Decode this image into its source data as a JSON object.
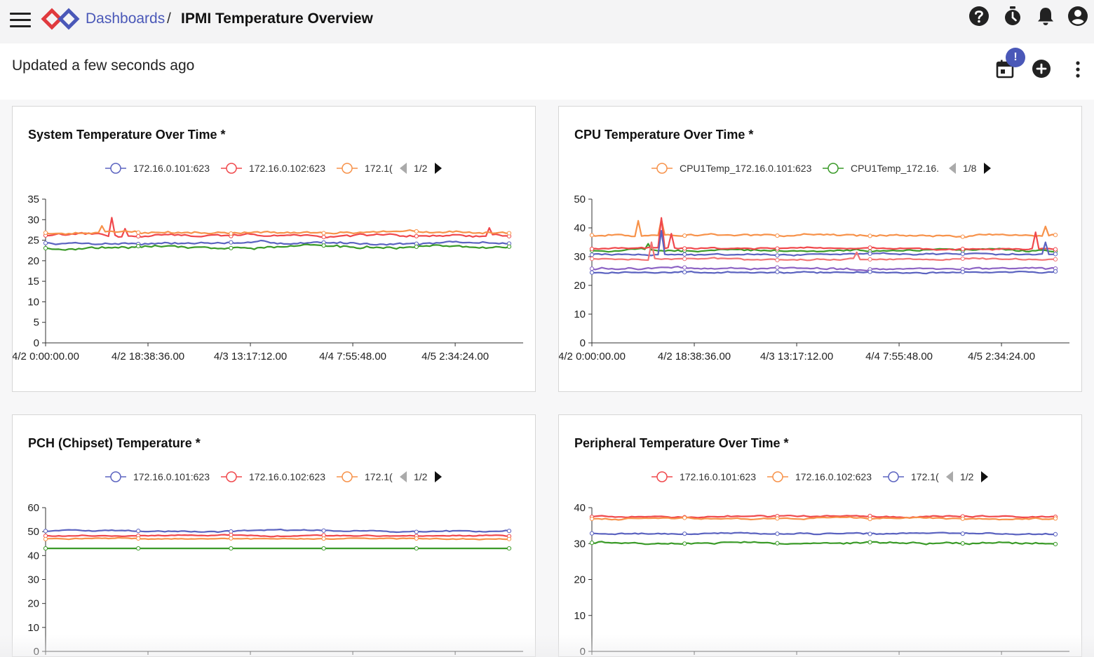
{
  "header": {
    "breadcrumb_link": "Dashboards",
    "breadcrumb_separator": "/",
    "title": "IPMI Temperature Overview",
    "icons": [
      "menu-icon",
      "app-logo",
      "help-icon",
      "timer-icon",
      "notification-bell-icon",
      "account-icon"
    ]
  },
  "toolbar": {
    "updated_text": "Updated a few seconds ago",
    "badge": "!",
    "icons": [
      "calendar-icon",
      "add-icon",
      "more-vert-icon"
    ]
  },
  "colors": {
    "accent": "#4a58b8",
    "series_blue": "#5b63c0",
    "series_red": "#f0484c",
    "series_orange": "#f7924a",
    "series_green": "#3a9a28",
    "series_purple": "#8c63c4",
    "series_lightred": "#f27474"
  },
  "chart_data": [
    {
      "type": "line",
      "title": "System Temperature Over Time *",
      "legend": {
        "items": [
          "172.16.0.101:623",
          "172.16.0.102:623",
          "172.1("
        ],
        "page": "1/2",
        "placement": "top"
      },
      "x_ticks": [
        "4/2 0:00:00.00",
        "4/2 18:38:36.00",
        "4/3 13:17:12.00",
        "4/4 7:55:48.00",
        "4/5 2:34:24.00"
      ],
      "y_ticks": [
        "0",
        "5",
        "10",
        "15",
        "20",
        "25",
        "30",
        "35"
      ],
      "ylim": [
        0,
        35
      ],
      "grid": false,
      "series": [
        {
          "name": "172.16.0.101:623",
          "color": "#5b63c0",
          "base": 24.3,
          "noise": 0.4
        },
        {
          "name": "172.16.0.102:623",
          "color": "#f0484c",
          "base": 26.2,
          "noise": 0.5,
          "spikes": [
            [
              0.14,
              30.5
            ],
            [
              0.17,
              27.8
            ],
            [
              0.96,
              28.0
            ]
          ]
        },
        {
          "name": "172.1(",
          "color": "#f7924a",
          "base": 26.9,
          "noise": 0.4,
          "spikes": [
            [
              0.12,
              28.5
            ]
          ]
        },
        {
          "name": "",
          "color": "#3a9a28",
          "base": 23.2,
          "noise": 0.5
        }
      ]
    },
    {
      "type": "line",
      "title": "CPU Temperature Over Time *",
      "legend": {
        "items": [
          "CPU1Temp_172.16.0.101:623",
          "CPU1Temp_172.16."
        ],
        "page": "1/8",
        "placement": "top"
      },
      "x_ticks": [
        "4/2 0:00:00.00",
        "4/2 18:38:36.00",
        "4/3 13:17:12.00",
        "4/4 7:55:48.00",
        "4/5 2:34:24.00"
      ],
      "y_ticks": [
        "0",
        "10",
        "20",
        "30",
        "40",
        "50"
      ],
      "ylim": [
        0,
        50
      ],
      "grid": false,
      "series": [
        {
          "name": "",
          "color": "#f7924a",
          "base": 37.5,
          "noise": 0.6,
          "spikes": [
            [
              0.1,
              42.5
            ],
            [
              0.15,
              43.0
            ],
            [
              0.98,
              40.5
            ]
          ]
        },
        {
          "name": "",
          "color": "#3a9a28",
          "base": 32.2,
          "noise": 0.5,
          "spikes": [
            [
              0.12,
              34.5
            ]
          ]
        },
        {
          "name": "",
          "color": "#f0484c",
          "base": 32.8,
          "noise": 0.4,
          "spikes": [
            [
              0.15,
              43.5
            ],
            [
              0.17,
              38.0
            ],
            [
              0.96,
              38.5
            ]
          ]
        },
        {
          "name": "",
          "color": "#5b63c0",
          "base": 30.8,
          "noise": 0.4,
          "spikes": [
            [
              0.15,
              39.0
            ],
            [
              0.98,
              35.0
            ]
          ]
        },
        {
          "name": "",
          "color": "#f27474",
          "base": 29.2,
          "noise": 0.4,
          "spikes": [
            [
              0.13,
              35.0
            ],
            [
              0.57,
              31.5
            ]
          ]
        },
        {
          "name": "",
          "color": "#8c63c4",
          "base": 25.8,
          "noise": 0.5
        },
        {
          "name": "",
          "color": "#5b63c0",
          "base": 24.5,
          "noise": 0.4
        }
      ]
    },
    {
      "type": "line",
      "title": "PCH (Chipset) Temperature *",
      "legend": {
        "items": [
          "172.16.0.101:623",
          "172.16.0.102:623",
          "172.1("
        ],
        "page": "1/2",
        "placement": "top"
      },
      "x_ticks": [],
      "y_ticks": [
        "0",
        "10",
        "20",
        "30",
        "40",
        "50",
        "60"
      ],
      "ylim": [
        0,
        60
      ],
      "grid": false,
      "series": [
        {
          "name": "172.16.0.101:623",
          "color": "#5b63c0",
          "base": 50.3,
          "noise": 0.4
        },
        {
          "name": "172.16.0.102:623",
          "color": "#f0484c",
          "base": 48.3,
          "noise": 0.3
        },
        {
          "name": "172.1(",
          "color": "#f7924a",
          "base": 47.0,
          "noise": 0.3
        },
        {
          "name": "",
          "color": "#3a9a28",
          "base": 43.0,
          "noise": 0.0
        }
      ]
    },
    {
      "type": "line",
      "title": "Peripheral Temperature Over Time *",
      "legend": {
        "items": [
          "172.16.0.101:623",
          "172.16.0.102:623",
          "172.1("
        ],
        "page": "1/2",
        "placement": "top"
      },
      "x_ticks": [],
      "y_ticks": [
        "0",
        "10",
        "20",
        "30",
        "40"
      ],
      "ylim": [
        0,
        40
      ],
      "grid": false,
      "series": [
        {
          "name": "172.16.0.102:623",
          "color": "#f0484c",
          "base": 37.5,
          "noise": 0.3
        },
        {
          "name": "172.1(",
          "color": "#f7924a",
          "base": 37.0,
          "noise": 0.3
        },
        {
          "name": "172.16.0.101:623",
          "color": "#5b63c0",
          "base": 32.8,
          "noise": 0.3
        },
        {
          "name": "",
          "color": "#3a9a28",
          "base": 30.2,
          "noise": 0.4
        }
      ]
    }
  ]
}
